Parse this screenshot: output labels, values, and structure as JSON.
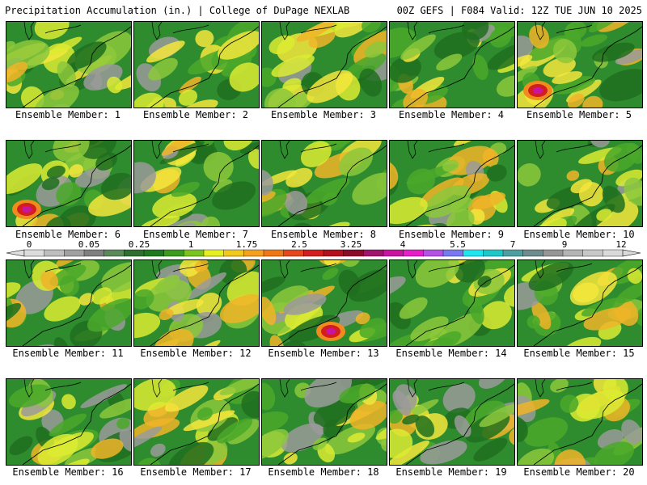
{
  "header": {
    "left_title": "Precipitation Accumulation (in.) | College of DuPage NEXLAB",
    "right_title": "00Z GEFS | F084 Valid: 12Z TUE JUN 10 2025"
  },
  "panels": [
    {
      "label": "Ensemble Member: 1",
      "heavy": false
    },
    {
      "label": "Ensemble Member: 2",
      "heavy": false
    },
    {
      "label": "Ensemble Member: 3",
      "heavy": false
    },
    {
      "label": "Ensemble Member: 4",
      "heavy": false
    },
    {
      "label": "Ensemble Member: 5",
      "heavy": true
    },
    {
      "label": "Ensemble Member: 6",
      "heavy": true
    },
    {
      "label": "Ensemble Member: 7",
      "heavy": false
    },
    {
      "label": "Ensemble Member: 8",
      "heavy": false
    },
    {
      "label": "Ensemble Member: 9",
      "heavy": false
    },
    {
      "label": "Ensemble Member: 10",
      "heavy": false
    },
    {
      "label": "Ensemble Member: 11",
      "heavy": false
    },
    {
      "label": "Ensemble Member: 12",
      "heavy": false
    },
    {
      "label": "Ensemble Member: 13",
      "heavy": true
    },
    {
      "label": "Ensemble Member: 14",
      "heavy": false
    },
    {
      "label": "Ensemble Member: 15",
      "heavy": false
    },
    {
      "label": "Ensemble Member: 16",
      "heavy": false
    },
    {
      "label": "Ensemble Member: 17",
      "heavy": false
    },
    {
      "label": "Ensemble Member: 18",
      "heavy": false
    },
    {
      "label": "Ensemble Member: 19",
      "heavy": false
    },
    {
      "label": "Ensemble Member: 20",
      "heavy": false
    }
  ],
  "legend": {
    "labels": [
      "0",
      "0.05",
      "0.25",
      "1",
      "1.75",
      "2.5",
      "3.25",
      "4",
      "5.5",
      "7",
      "9",
      "12"
    ],
    "colors": [
      "#dcdcdc",
      "#bebebe",
      "#a0a0a0",
      "#7f7f7f",
      "#5a8a5a",
      "#2f6f2f",
      "#1e7a1e",
      "#3c9c1e",
      "#7cc31e",
      "#e6f01e",
      "#f0c81e",
      "#f5a01e",
      "#f07814",
      "#e6461e",
      "#d21e1e",
      "#b40f1e",
      "#8c0a28",
      "#a0146e",
      "#c814a0",
      "#e61ec8",
      "#b450e6",
      "#7878f0",
      "#1ee6f0",
      "#1ec8c8",
      "#4ea0a0",
      "#6e8c8c",
      "#969696",
      "#b4b4b4",
      "#c8c8c8",
      "#dadada"
    ]
  }
}
